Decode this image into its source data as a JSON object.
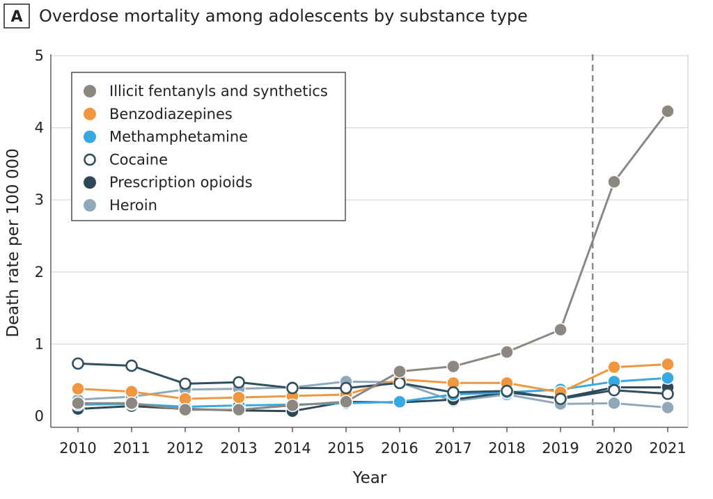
{
  "panel_label": "A",
  "chart_data": {
    "type": "line",
    "title": "Overdose mortality among adolescents by substance type",
    "xlabel": "Year",
    "ylabel": "Death rate per 100 000",
    "x": [
      2010,
      2011,
      2012,
      2013,
      2014,
      2015,
      2016,
      2017,
      2018,
      2019,
      2020,
      2021
    ],
    "x_tick_labels": [
      "2010",
      "2011",
      "2012",
      "2013",
      "2014",
      "2015",
      "2016",
      "2017",
      "2018",
      "2019",
      "2020",
      "2021"
    ],
    "ylim": [
      0,
      5
    ],
    "y_ticks": [
      0,
      1,
      2,
      3,
      4,
      5
    ],
    "y_tick_labels": [
      "0",
      "1",
      "2",
      "3",
      "4",
      "5"
    ],
    "grid": "horizontal",
    "legend_position": "top-left",
    "reference_line": {
      "x": 2019.6,
      "style": "dashed"
    },
    "series": [
      {
        "name": "Heroin",
        "color": "#8fa9bb",
        "marker": "filled",
        "values": [
          0.23,
          0.27,
          0.37,
          0.38,
          0.4,
          0.48,
          0.47,
          0.21,
          0.3,
          0.17,
          0.18,
          0.12
        ]
      },
      {
        "name": "Prescription opioids",
        "color": "#2f4858",
        "marker": "filled",
        "values": [
          0.1,
          0.14,
          0.1,
          0.08,
          0.07,
          0.2,
          0.19,
          0.23,
          0.33,
          0.25,
          0.4,
          0.4
        ]
      },
      {
        "name": "Methamphetamine",
        "color": "#35a9e1",
        "marker": "filled",
        "values": [
          0.16,
          0.17,
          0.13,
          0.15,
          0.16,
          0.18,
          0.2,
          0.3,
          0.33,
          0.37,
          0.48,
          0.53
        ]
      },
      {
        "name": "Benzodiazepines",
        "color": "#f0963e",
        "marker": "filled",
        "values": [
          0.38,
          0.34,
          0.24,
          0.26,
          0.28,
          0.3,
          0.51,
          0.46,
          0.46,
          0.33,
          0.68,
          0.72
        ]
      },
      {
        "name": "Cocaine",
        "color": "#2f4f5f",
        "marker": "open",
        "values": [
          0.73,
          0.7,
          0.45,
          0.47,
          0.39,
          0.39,
          0.46,
          0.33,
          0.35,
          0.24,
          0.36,
          0.31
        ]
      },
      {
        "name": "Illicit fentanyls and synthetics",
        "color": "#8d8782",
        "marker": "filled",
        "values": [
          0.18,
          0.18,
          0.09,
          0.09,
          0.15,
          0.2,
          0.62,
          0.69,
          0.89,
          1.2,
          3.25,
          4.23
        ]
      }
    ],
    "legend_order": [
      "Illicit fentanyls and synthetics",
      "Benzodiazepines",
      "Methamphetamine",
      "Cocaine",
      "Prescription opioids",
      "Heroin"
    ]
  }
}
